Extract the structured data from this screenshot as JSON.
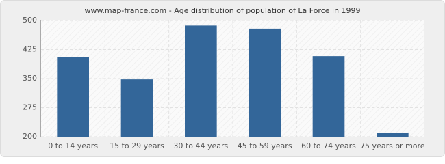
{
  "chart_data": {
    "type": "bar",
    "title": "www.map-france.com - Age distribution of population of La Force in 1999",
    "categories": [
      "0 to 14 years",
      "15 to 29 years",
      "30 to 44 years",
      "45 to 59 years",
      "60 to 74 years",
      "75 years or more"
    ],
    "values": [
      405,
      348,
      487,
      479,
      408,
      209
    ],
    "color": "#336699",
    "ylim": [
      200,
      500
    ],
    "yticks": [
      200,
      275,
      350,
      425,
      500
    ],
    "grid": true
  }
}
